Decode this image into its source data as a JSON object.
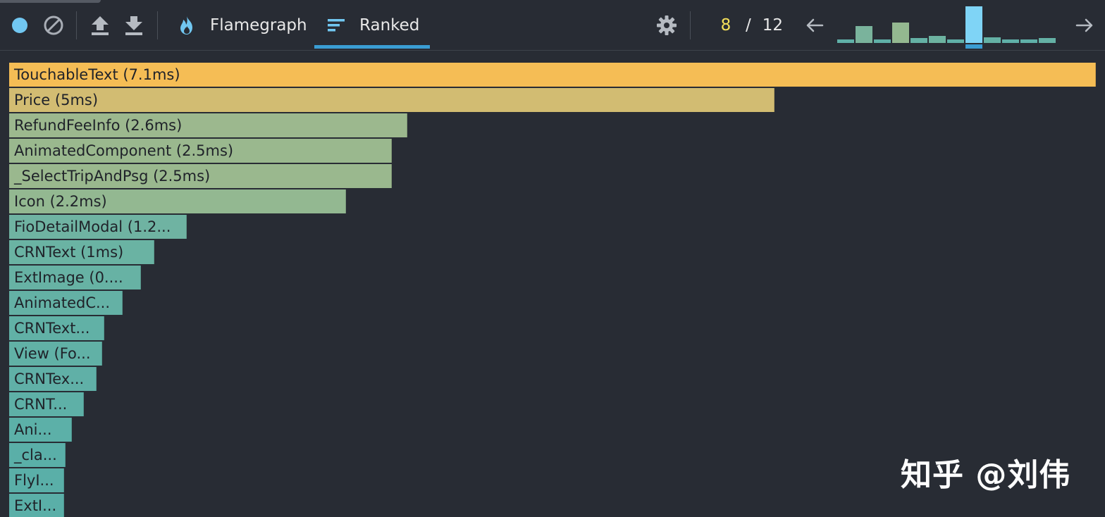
{
  "toolbar": {
    "tabs": [
      {
        "label": "Flamegraph",
        "icon": "flame-icon",
        "active": false
      },
      {
        "label": "Ranked",
        "icon": "ranked-icon",
        "active": true
      }
    ],
    "commit": {
      "current": "8",
      "separator": "/",
      "total": "12"
    },
    "colors": {
      "accent": "#3a9dd3",
      "record": "#71c7f1",
      "current_commit": "#f5e05a"
    }
  },
  "snapshot_commits": [
    {
      "value": 0.09,
      "color": "#5fb0a8"
    },
    {
      "value": 0.47,
      "color": "#7ab39c"
    },
    {
      "value": 0.09,
      "color": "#5fb0a8"
    },
    {
      "value": 0.55,
      "color": "#94b890"
    },
    {
      "value": 0.13,
      "color": "#64b1a5"
    },
    {
      "value": 0.2,
      "color": "#6db3a1"
    },
    {
      "value": 0.09,
      "color": "#5fb0a8"
    },
    {
      "value": 1.0,
      "color": "#7fd4f6",
      "selected": true
    },
    {
      "value": 0.16,
      "color": "#64b1a5"
    },
    {
      "value": 0.06,
      "color": "#5fb0a8"
    },
    {
      "value": 0.06,
      "color": "#5fb0a8"
    },
    {
      "value": 0.13,
      "color": "#64b1a5"
    }
  ],
  "ranked": {
    "items": [
      {
        "label": "TouchableText (7.1ms)",
        "ms": 7.1,
        "color": "#f5bd55"
      },
      {
        "label": "Price (5ms)",
        "ms": 5.0,
        "color": "#d2bc72"
      },
      {
        "label": "RefundFeeInfo (2.6ms)",
        "ms": 2.6,
        "color": "#9cb88e"
      },
      {
        "label": "AnimatedComponent (2.5ms)",
        "ms": 2.5,
        "color": "#9ab88e"
      },
      {
        "label": "_SelectTripAndPsg (2.5ms)",
        "ms": 2.5,
        "color": "#9ab88e"
      },
      {
        "label": "Icon (2.2ms)",
        "ms": 2.2,
        "color": "#93b891"
      },
      {
        "label": "FioDetailModal (1.2...",
        "ms": 1.16,
        "color": "#6fb3a2"
      },
      {
        "label": "CRNText (1ms)",
        "ms": 0.95,
        "color": "#6ab3a3"
      },
      {
        "label": "ExtImage (0....",
        "ms": 0.86,
        "color": "#67b2a4"
      },
      {
        "label": "AnimatedC...",
        "ms": 0.74,
        "color": "#64b1a5"
      },
      {
        "label": "CRNText...",
        "ms": 0.62,
        "color": "#61b1a6"
      },
      {
        "label": "View (Fo...",
        "ms": 0.61,
        "color": "#61b1a6"
      },
      {
        "label": "CRNTex...",
        "ms": 0.57,
        "color": "#60b0a7"
      },
      {
        "label": "CRNT...",
        "ms": 0.49,
        "color": "#5eb0a7"
      },
      {
        "label": "Ani...",
        "ms": 0.41,
        "color": "#5cb0a8"
      },
      {
        "label": "_cla...",
        "ms": 0.37,
        "color": "#5aafa8"
      },
      {
        "label": "FlyI...",
        "ms": 0.36,
        "color": "#5aafa8"
      },
      {
        "label": "ExtI...",
        "ms": 0.36,
        "color": "#5aafa8"
      }
    ]
  },
  "watermark": {
    "text": "知乎 @刘伟"
  }
}
